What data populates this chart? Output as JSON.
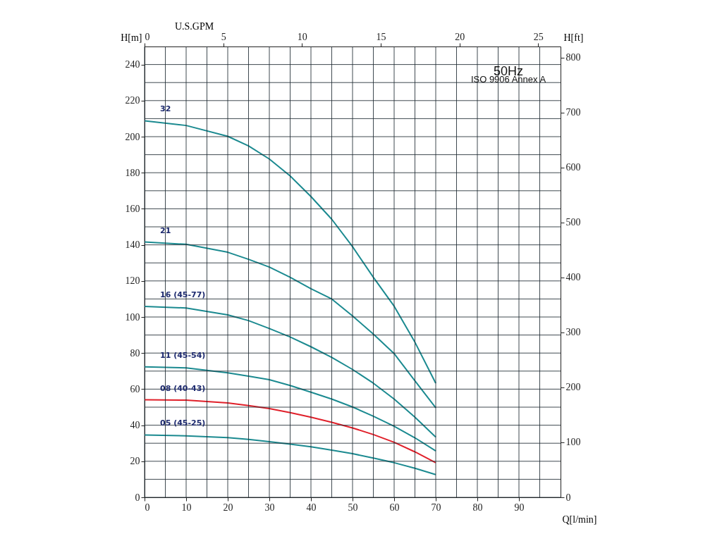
{
  "chart_data": {
    "type": "line",
    "xlabel": "Q[l/min]",
    "ylabel": "H[m]",
    "y2label": "H[ft]",
    "x2label": "U.S.GPM",
    "xlim": [
      0,
      100
    ],
    "xticks": [
      0,
      {
        "value": 5,
        "label": null
      },
      10,
      {
        "value": 15,
        "label": null
      },
      20,
      {
        "value": 25,
        "label": null
      },
      30,
      {
        "value": 35,
        "label": null
      },
      40,
      {
        "value": 45,
        "label": null
      },
      50,
      {
        "value": 55,
        "label": null
      },
      60,
      {
        "value": 65,
        "label": null
      },
      70,
      {
        "value": 75,
        "label": null
      },
      80,
      {
        "value": 85,
        "label": null
      },
      90,
      {
        "value": 95,
        "label": null
      }
    ],
    "ylim": [
      0,
      250
    ],
    "yticks": [
      0,
      {
        "value": 10,
        "label": null
      },
      20,
      {
        "value": 30,
        "label": null
      },
      40,
      {
        "value": 50,
        "label": null
      },
      60,
      {
        "value": 70,
        "label": null
      },
      80,
      {
        "value": 90,
        "label": null
      },
      100,
      {
        "value": 110,
        "label": null
      },
      120,
      {
        "value": 130,
        "label": null
      },
      140,
      {
        "value": 150,
        "label": null
      },
      160,
      {
        "value": 170,
        "label": null
      },
      180,
      {
        "value": 190,
        "label": null
      },
      200,
      {
        "value": 210,
        "label": null
      },
      220,
      {
        "value": 230,
        "label": null
      },
      240
    ],
    "y2lim": [
      0,
      820.2
    ],
    "y2ticks": [
      0,
      100,
      200,
      300,
      400,
      500,
      600,
      700,
      800
    ],
    "x2lim": [
      0,
      26.42
    ],
    "x2ticks": [
      0,
      5,
      10,
      15,
      20,
      25
    ],
    "grid": true,
    "legend": false,
    "marker": "none",
    "line_style": "solid",
    "annotations": [
      "50Hz",
      "ISO 9906 Annex A"
    ],
    "x": [
      0,
      10,
      20,
      25,
      30,
      35,
      40,
      45,
      50,
      55,
      60,
      65,
      70
    ],
    "series": [
      {
        "name": "32",
        "color": "#1b8a90",
        "values": [
          208.8,
          206.2,
          200.2,
          194.9,
          187.6,
          178.2,
          166.8,
          154.2,
          139,
          122,
          106,
          86,
          63.3
        ]
      },
      {
        "name": "21",
        "color": "#1b8a90",
        "values": [
          141.6,
          140.3,
          135.9,
          132,
          127.7,
          122,
          115.7,
          110,
          100.6,
          90.5,
          79.7,
          64.6,
          49.7
        ]
      },
      {
        "name": "16 (45-77)",
        "color": "#1b8a90",
        "values": [
          105.9,
          105,
          101.2,
          98,
          93.6,
          88.9,
          83.5,
          77.6,
          70.9,
          63.3,
          54.5,
          44.4,
          33.4
        ]
      },
      {
        "name": "11 (45-54)",
        "color": "#1b8a90",
        "values": [
          72.4,
          71.8,
          69,
          67.2,
          65.2,
          62,
          58.3,
          54.5,
          50.1,
          45,
          39.4,
          33,
          25.7
        ]
      },
      {
        "name": "08 (40-43)",
        "color": "#e0202a",
        "values": [
          54.1,
          53.9,
          52.3,
          50.9,
          49.2,
          47,
          44.4,
          41.6,
          38.5,
          34.8,
          30.5,
          25.2,
          19.2
        ]
      },
      {
        "name": "05 (45-25)",
        "color": "#1b8a90",
        "values": [
          34.6,
          34.1,
          33.1,
          32.1,
          30.9,
          29.5,
          28,
          26.2,
          24.2,
          21.8,
          19.2,
          16.1,
          12.6
        ]
      }
    ]
  }
}
